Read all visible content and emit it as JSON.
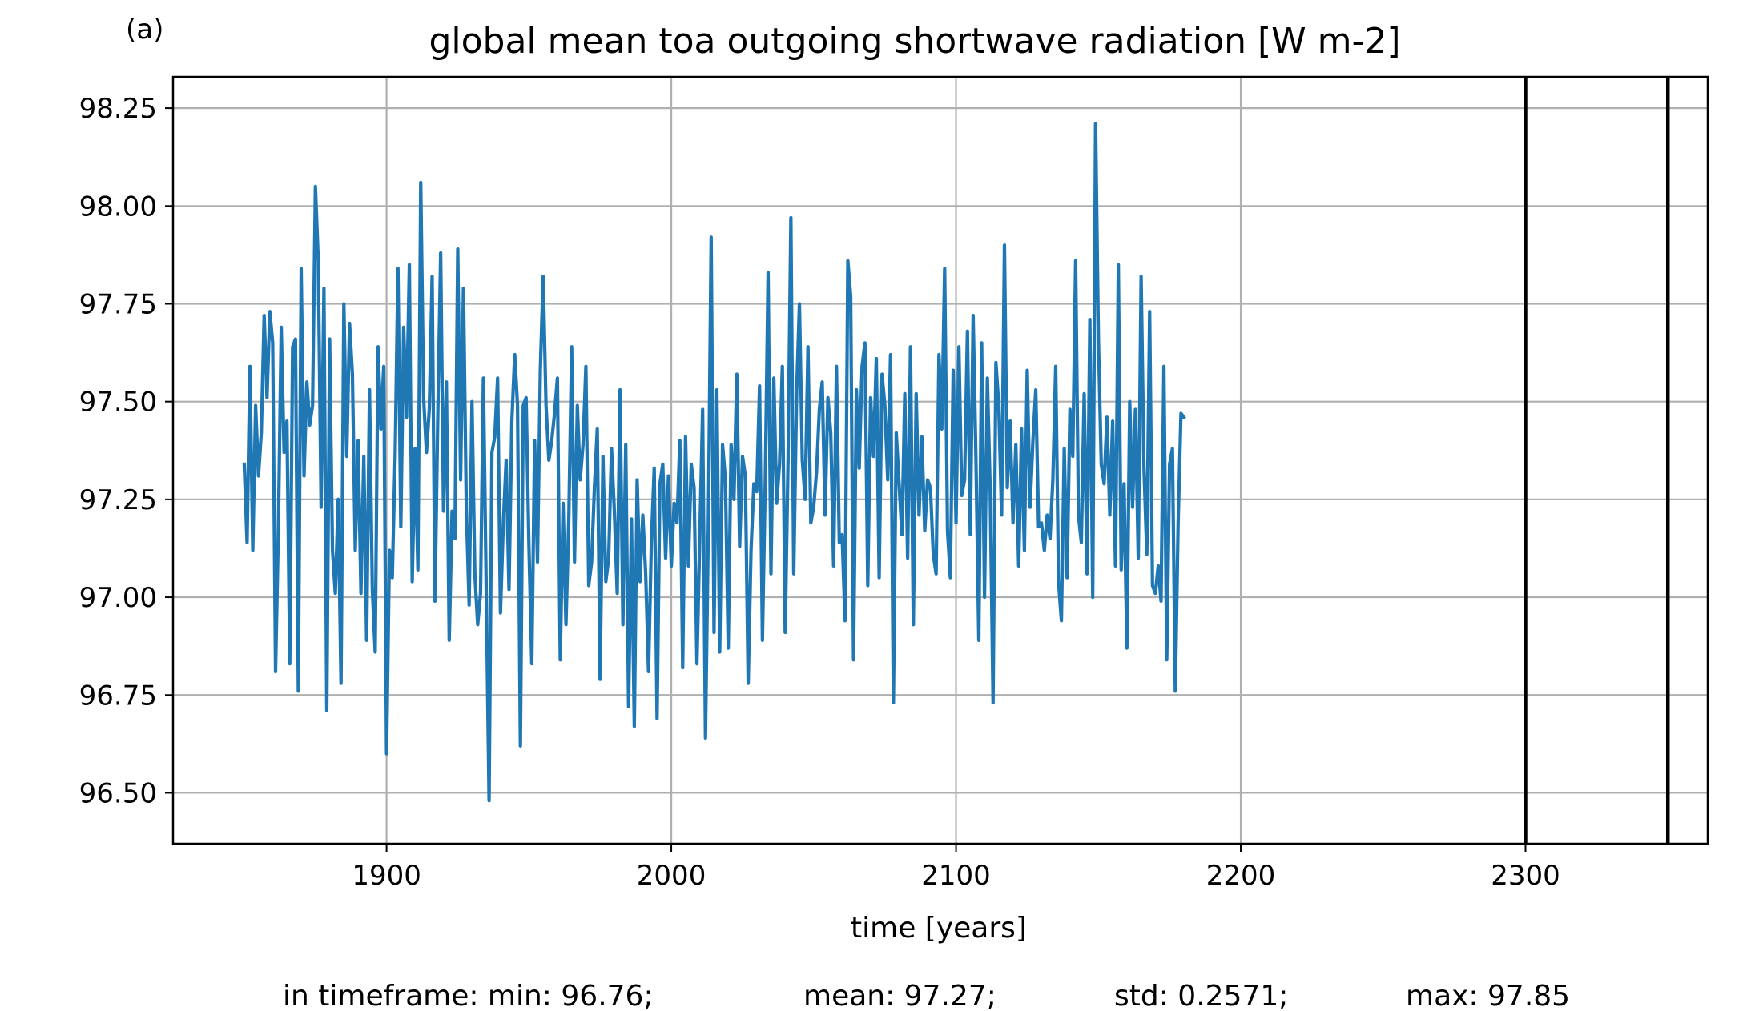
{
  "chart_data": {
    "type": "line",
    "panel_label": "(a)",
    "title": "global mean toa outgoing shortwave radiation [W m-2]",
    "xlabel": "time [years]",
    "ylabel": "",
    "xlim": [
      1825,
      2364
    ],
    "ylim": [
      96.37,
      98.33
    ],
    "xticks": [
      1900,
      2000,
      2100,
      2200,
      2300
    ],
    "xtick_labels": [
      "1900",
      "2000",
      "2100",
      "2200",
      "2300"
    ],
    "yticks": [
      96.5,
      96.75,
      97.0,
      97.25,
      97.5,
      97.75,
      98.0,
      98.25
    ],
    "ytick_labels": [
      "96.50",
      "96.75",
      "97.00",
      "97.25",
      "97.50",
      "97.75",
      "98.00",
      "98.25"
    ],
    "grid": true,
    "line_color": "#1f77b4",
    "vlines": [
      2300,
      2350
    ],
    "vline_color": "#000000",
    "stats": {
      "min": "in timeframe: min: 96.76;",
      "mean": "mean: 97.27;",
      "std": "std: 0.2571;",
      "max": "max: 97.85"
    },
    "series": [
      {
        "x_start": 1850,
        "x_step": 1,
        "values": [
          97.34,
          97.14,
          97.59,
          97.12,
          97.49,
          97.31,
          97.42,
          97.72,
          97.51,
          97.73,
          97.65,
          96.81,
          97.18,
          97.69,
          97.37,
          97.45,
          96.83,
          97.64,
          97.66,
          96.76,
          97.84,
          97.31,
          97.55,
          97.44,
          97.49,
          98.05,
          97.86,
          97.23,
          97.79,
          96.71,
          97.66,
          97.12,
          97.01,
          97.25,
          96.78,
          97.75,
          97.36,
          97.7,
          97.57,
          97.12,
          97.4,
          97.01,
          97.36,
          96.89,
          97.53,
          97.02,
          96.86,
          97.64,
          97.43,
          97.59,
          96.6,
          97.12,
          97.05,
          97.36,
          97.84,
          97.18,
          97.69,
          97.46,
          97.85,
          97.04,
          97.38,
          97.07,
          98.06,
          97.51,
          97.37,
          97.48,
          97.82,
          96.99,
          97.47,
          97.88,
          97.22,
          97.55,
          96.89,
          97.22,
          97.15,
          97.89,
          97.3,
          97.79,
          97.23,
          96.98,
          97.5,
          97.06,
          96.93,
          97.01,
          97.56,
          97.02,
          96.48,
          97.37,
          97.41,
          97.56,
          96.96,
          97.19,
          97.35,
          97.02,
          97.45,
          97.62,
          97.49,
          96.62,
          97.49,
          97.51,
          97.13,
          96.83,
          97.4,
          97.09,
          97.58,
          97.82,
          97.49,
          97.35,
          97.4,
          97.47,
          97.56,
          96.84,
          97.24,
          96.93,
          97.2,
          97.64,
          97.09,
          97.49,
          97.3,
          97.39,
          97.59,
          97.03,
          97.09,
          97.28,
          97.43,
          96.79,
          97.36,
          97.04,
          97.1,
          97.38,
          97.22,
          97.01,
          97.53,
          96.93,
          97.39,
          96.72,
          97.2,
          96.67,
          97.3,
          97.04,
          97.21,
          97.06,
          96.81,
          97.14,
          97.33,
          96.69,
          97.29,
          97.34,
          97.1,
          97.31,
          97.08,
          97.24,
          97.19,
          97.4,
          96.82,
          97.41,
          97.08,
          97.34,
          97.28,
          96.83,
          97.15,
          97.48,
          96.64,
          97.18,
          97.92,
          96.91,
          97.53,
          96.86,
          97.39,
          97.3,
          96.87,
          97.39,
          97.25,
          97.57,
          97.13,
          97.36,
          97.31,
          96.78,
          97.12,
          97.29,
          97.27,
          97.54,
          96.89,
          97.3,
          97.83,
          97.06,
          97.56,
          97.24,
          97.34,
          97.59,
          96.91,
          97.35,
          97.97,
          97.06,
          97.52,
          97.75,
          97.35,
          97.25,
          97.64,
          97.19,
          97.23,
          97.32,
          97.48,
          97.55,
          97.21,
          97.51,
          97.42,
          97.08,
          97.59,
          97.14,
          97.16,
          96.94,
          97.86,
          97.77,
          96.84,
          97.53,
          97.33,
          97.59,
          97.65,
          97.03,
          97.51,
          97.36,
          97.61,
          97.05,
          97.57,
          97.49,
          97.3,
          97.62,
          96.73,
          97.42,
          97.29,
          97.16,
          97.52,
          97.1,
          97.64,
          96.93,
          97.52,
          97.21,
          97.41,
          97.17,
          97.3,
          97.28,
          97.11,
          97.06,
          97.62,
          97.43,
          97.84,
          97.17,
          97.05,
          97.58,
          97.19,
          97.64,
          97.26,
          97.3,
          97.68,
          97.16,
          97.72,
          97.35,
          96.89,
          97.65,
          97.0,
          97.56,
          97.27,
          96.73,
          97.6,
          97.49,
          97.21,
          97.9,
          97.28,
          97.45,
          97.19,
          97.39,
          97.08,
          97.43,
          97.12,
          97.58,
          97.23,
          97.4,
          97.53,
          97.18,
          97.19,
          97.12,
          97.21,
          97.15,
          97.3,
          97.59,
          97.04,
          96.94,
          97.38,
          97.05,
          97.48,
          97.36,
          97.86,
          97.21,
          97.14,
          97.52,
          97.06,
          97.71,
          97.0,
          98.21,
          97.66,
          97.34,
          97.29,
          97.46,
          97.21,
          97.45,
          97.08,
          97.85,
          97.07,
          97.29,
          96.87,
          97.5,
          97.23,
          97.48,
          97.1,
          97.82,
          97.33,
          97.11,
          97.73,
          97.03,
          97.01,
          97.08,
          96.99,
          97.59,
          96.84,
          97.34,
          97.38,
          96.76,
          97.19,
          97.47,
          97.46
        ]
      }
    ]
  }
}
